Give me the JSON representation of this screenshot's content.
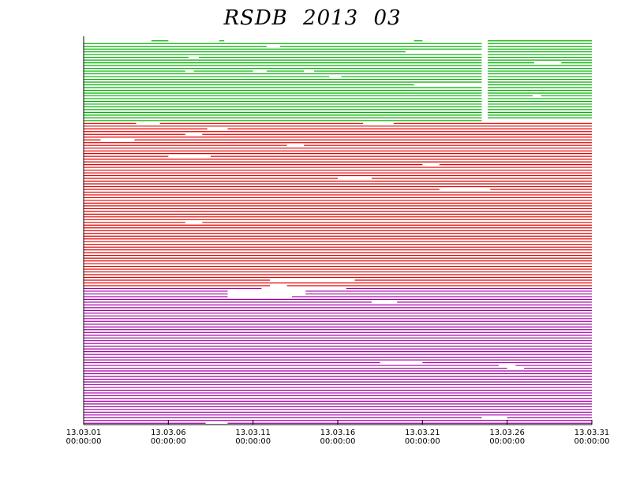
{
  "chart_data": {
    "type": "availability",
    "title": "RSDB 2013 03",
    "xlim": [
      1,
      31
    ],
    "xticks": [
      {
        "value": 1,
        "label": "13.03.01 00:00:00"
      },
      {
        "value": 6,
        "label": "13.03.06 00:00:00"
      },
      {
        "value": 11,
        "label": "13.03.11 00:00:00"
      },
      {
        "value": 16,
        "label": "13.03.16 00:00:00"
      },
      {
        "value": 21,
        "label": "13.03.21 00:00:00"
      },
      {
        "value": 26,
        "label": "13.03.26 00:00:00"
      },
      {
        "value": 31,
        "label": "13.03.31 00:00:00"
      }
    ],
    "groups": [
      {
        "color": "#00b000",
        "rows": [
          [
            [
              5,
              6
            ],
            [
              9,
              9.3
            ],
            [
              20.5,
              21
            ],
            [
              24.85,
              31
            ]
          ],
          [
            [
              1,
              24.5
            ],
            [
              24.85,
              31
            ]
          ],
          [
            [
              1,
              11.8
            ],
            [
              12.6,
              24.5
            ],
            [
              24.85,
              31
            ]
          ],
          [
            [
              1,
              24.5
            ],
            [
              24.85,
              31
            ]
          ],
          [
            [
              1,
              20
            ],
            [
              24.85,
              31
            ]
          ],
          [
            [
              1,
              24.5
            ],
            [
              24.85,
              31
            ]
          ],
          [
            [
              1,
              7.2
            ],
            [
              7.8,
              24.5
            ],
            [
              24.85,
              31
            ]
          ],
          [
            [
              1,
              24.5
            ],
            [
              24.85,
              31
            ]
          ],
          [
            [
              1,
              24.5
            ],
            [
              24.85,
              27.6
            ],
            [
              29.2,
              31
            ]
          ],
          [
            [
              1,
              24.5
            ],
            [
              24.85,
              31
            ]
          ],
          [
            [
              1,
              24.5
            ],
            [
              24.85,
              31
            ]
          ],
          [
            [
              1,
              7
            ],
            [
              7.5,
              11
            ],
            [
              11.8,
              14
            ],
            [
              14.6,
              24.5
            ],
            [
              24.85,
              31
            ]
          ],
          [
            [
              1,
              24.5
            ],
            [
              24.85,
              31
            ]
          ],
          [
            [
              1,
              15.5
            ],
            [
              16.2,
              24.5
            ],
            [
              24.85,
              31
            ]
          ],
          [
            [
              1,
              24.5
            ],
            [
              24.85,
              31
            ]
          ],
          [
            [
              1,
              24.5
            ],
            [
              24.85,
              31
            ]
          ],
          [
            [
              1,
              20.5
            ],
            [
              24.85,
              31
            ]
          ],
          [
            [
              1,
              24.5
            ],
            [
              24.85,
              31
            ]
          ],
          [
            [
              1,
              24.5
            ],
            [
              24.85,
              31
            ]
          ],
          [
            [
              1,
              24.5
            ],
            [
              24.85,
              31
            ]
          ],
          [
            [
              1,
              24.5
            ],
            [
              24.85,
              27.5
            ],
            [
              28,
              31
            ]
          ],
          [
            [
              1,
              24.5
            ],
            [
              24.85,
              31
            ]
          ],
          [
            [
              1,
              24.5
            ],
            [
              24.85,
              31
            ]
          ],
          [
            [
              1,
              24.5
            ],
            [
              24.85,
              31
            ]
          ],
          [
            [
              1,
              24.5
            ],
            [
              24.85,
              31
            ]
          ],
          [
            [
              1,
              24.5
            ],
            [
              24.85,
              31
            ]
          ],
          [
            [
              1,
              24.5
            ],
            [
              24.85,
              31
            ]
          ],
          [
            [
              1,
              24.5
            ],
            [
              24.85,
              31
            ]
          ],
          [
            [
              1,
              24.5
            ],
            [
              24.85,
              31
            ]
          ],
          [
            [
              1,
              24.5
            ]
          ]
        ]
      },
      {
        "color": "#e00000",
        "rows": [
          [
            [
              1,
              4.1
            ],
            [
              5.5,
              17.5
            ],
            [
              19.3,
              31
            ]
          ],
          [
            [
              1,
              31
            ]
          ],
          [
            [
              1,
              8.3
            ],
            [
              9.5,
              31
            ]
          ],
          [
            [
              1,
              31
            ]
          ],
          [
            [
              1,
              7
            ],
            [
              8,
              31
            ]
          ],
          [
            [
              1,
              31
            ]
          ],
          [
            [
              1,
              2
            ],
            [
              4,
              31
            ]
          ],
          [
            [
              1,
              31
            ]
          ],
          [
            [
              1,
              13
            ],
            [
              14,
              31
            ]
          ],
          [
            [
              1,
              31
            ]
          ],
          [
            [
              1,
              31
            ]
          ],
          [
            [
              1,
              31
            ]
          ],
          [
            [
              1,
              6
            ],
            [
              8.5,
              31
            ]
          ],
          [
            [
              1,
              31
            ]
          ],
          [
            [
              1,
              31
            ]
          ],
          [
            [
              1,
              21
            ],
            [
              22,
              31
            ]
          ],
          [
            [
              1,
              31
            ]
          ],
          [
            [
              1,
              31
            ]
          ],
          [
            [
              1,
              31
            ]
          ],
          [
            [
              1,
              31
            ]
          ],
          [
            [
              1,
              16
            ],
            [
              18,
              31
            ]
          ],
          [
            [
              1,
              31
            ]
          ],
          [
            [
              1,
              31
            ]
          ],
          [
            [
              1,
              31
            ]
          ],
          [
            [
              1,
              22
            ],
            [
              25,
              31
            ]
          ],
          [
            [
              1,
              31
            ]
          ],
          [
            [
              1,
              31
            ]
          ],
          [
            [
              1,
              31
            ]
          ],
          [
            [
              1,
              31
            ]
          ],
          [
            [
              1,
              31
            ]
          ],
          [
            [
              1,
              31
            ]
          ],
          [
            [
              1,
              31
            ]
          ],
          [
            [
              1,
              31
            ]
          ],
          [
            [
              1,
              31
            ]
          ],
          [
            [
              1,
              31
            ]
          ],
          [
            [
              1,
              31
            ]
          ],
          [
            [
              1,
              7
            ],
            [
              8,
              31
            ]
          ],
          [
            [
              1,
              31
            ]
          ],
          [
            [
              1,
              31
            ]
          ],
          [
            [
              1,
              31
            ]
          ],
          [
            [
              1,
              31
            ]
          ],
          [
            [
              1,
              31
            ]
          ],
          [
            [
              1,
              31
            ]
          ],
          [
            [
              1,
              31
            ]
          ],
          [
            [
              1,
              31
            ]
          ],
          [
            [
              1,
              31
            ]
          ],
          [
            [
              1,
              31
            ]
          ],
          [
            [
              1,
              31
            ]
          ],
          [
            [
              1,
              31
            ]
          ],
          [
            [
              1,
              31
            ]
          ],
          [
            [
              1,
              31
            ]
          ],
          [
            [
              1,
              31
            ]
          ],
          [
            [
              1,
              31
            ]
          ],
          [
            [
              1,
              31
            ]
          ],
          [
            [
              1,
              31
            ]
          ],
          [
            [
              1,
              31
            ]
          ],
          [
            [
              1,
              31
            ]
          ],
          [
            [
              1,
              12
            ],
            [
              17,
              31
            ]
          ],
          [
            [
              1,
              31
            ]
          ],
          [
            [
              1,
              12
            ],
            [
              13,
              31
            ]
          ]
        ]
      },
      {
        "color": "#a000a0",
        "rows": [
          [
            [
              1,
              11.5
            ],
            [
              16.5,
              31
            ]
          ],
          [
            [
              1,
              9.5
            ],
            [
              14.1,
              31
            ]
          ],
          [
            [
              1,
              9.5
            ],
            [
              14.1,
              31
            ]
          ],
          [
            [
              1,
              9.5
            ],
            [
              13.3,
              31
            ]
          ],
          [
            [
              1,
              31
            ]
          ],
          [
            [
              1,
              18
            ],
            [
              19.5,
              31
            ]
          ],
          [
            [
              1,
              31
            ]
          ],
          [
            [
              1,
              31
            ]
          ],
          [
            [
              1,
              31
            ]
          ],
          [
            [
              1,
              31
            ]
          ],
          [
            [
              1,
              31
            ]
          ],
          [
            [
              1,
              31
            ]
          ],
          [
            [
              1,
              31
            ]
          ],
          [
            [
              1,
              31
            ]
          ],
          [
            [
              1,
              31
            ]
          ],
          [
            [
              1,
              31
            ]
          ],
          [
            [
              1,
              31
            ]
          ],
          [
            [
              1,
              31
            ]
          ],
          [
            [
              1,
              31
            ]
          ],
          [
            [
              1,
              31
            ]
          ],
          [
            [
              1,
              31
            ]
          ],
          [
            [
              1,
              31
            ]
          ],
          [
            [
              1,
              31
            ]
          ],
          [
            [
              1,
              31
            ]
          ],
          [
            [
              1,
              31
            ]
          ],
          [
            [
              1,
              31
            ]
          ],
          [
            [
              1,
              31
            ]
          ],
          [
            [
              1,
              18.5
            ],
            [
              21,
              31
            ]
          ],
          [
            [
              1,
              25.5
            ],
            [
              26.5,
              31
            ]
          ],
          [
            [
              1,
              26
            ],
            [
              27,
              31
            ]
          ],
          [
            [
              1,
              31
            ]
          ],
          [
            [
              1,
              31
            ]
          ],
          [
            [
              1,
              31
            ]
          ],
          [
            [
              1,
              31
            ]
          ],
          [
            [
              1,
              31
            ]
          ],
          [
            [
              1,
              31
            ]
          ],
          [
            [
              1,
              31
            ]
          ],
          [
            [
              1,
              31
            ]
          ],
          [
            [
              1,
              31
            ]
          ],
          [
            [
              1,
              31
            ]
          ],
          [
            [
              1,
              31
            ]
          ],
          [
            [
              1,
              31
            ]
          ],
          [
            [
              1,
              31
            ]
          ],
          [
            [
              1,
              31
            ]
          ],
          [
            [
              1,
              31
            ]
          ],
          [
            [
              1,
              31
            ]
          ],
          [
            [
              1,
              31
            ]
          ],
          [
            [
              1,
              24.5
            ],
            [
              26,
              31
            ]
          ],
          [
            [
              1,
              31
            ]
          ],
          [
            [
              1,
              8.2
            ],
            [
              9.5,
              31
            ]
          ]
        ]
      }
    ]
  }
}
